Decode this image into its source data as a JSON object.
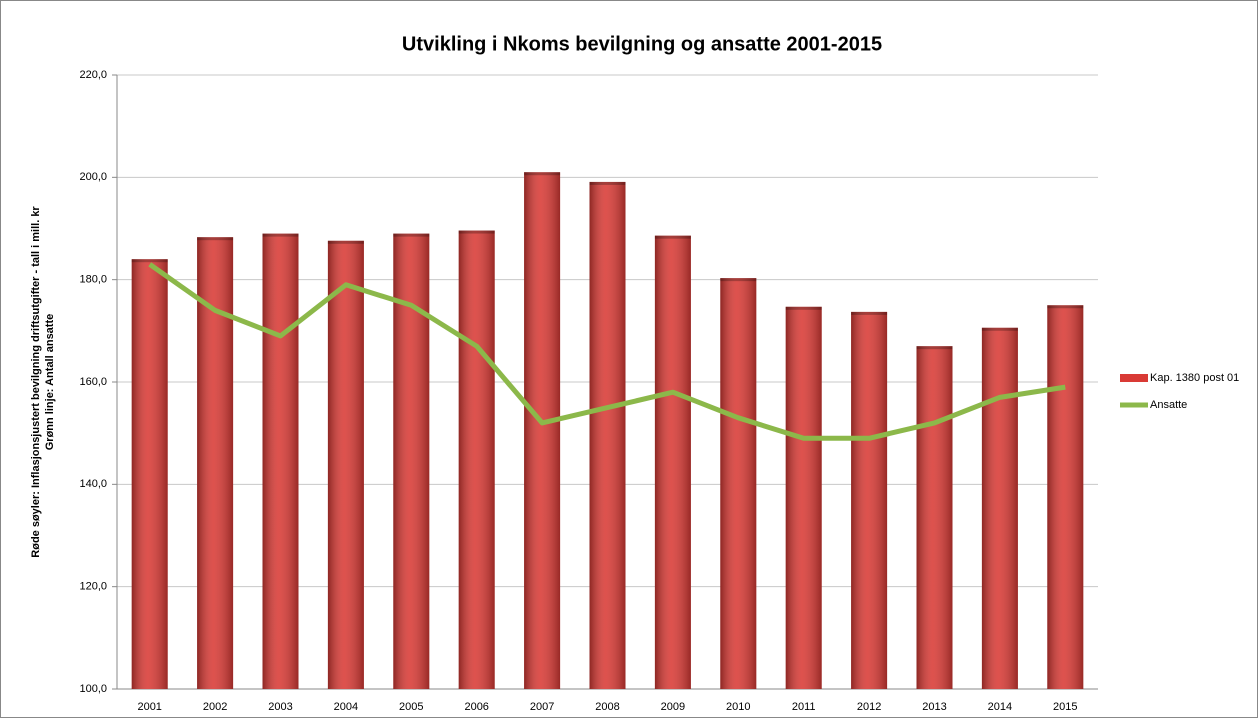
{
  "chart_data": {
    "type": "bar",
    "title": "Utvikling i Nkoms bevilgning og ansatte 2001-2015",
    "y_label": [
      "Røde søyler: Inflasjonsjustert bevilgning driftsutgifter  - tall i mill. kr",
      "Grønn linje: Antall ansatte"
    ],
    "categories": [
      "2001",
      "2002",
      "2003",
      "2004",
      "2005",
      "2006",
      "2007",
      "2008",
      "2009",
      "2010",
      "2011",
      "2012",
      "2013",
      "2014",
      "2015"
    ],
    "series": [
      {
        "name": "Kap. 1380 post 01",
        "type": "bar",
        "color": "#d93a35",
        "values": [
          184,
          188.3,
          189,
          187.6,
          189,
          189.6,
          201,
          199.1,
          188.6,
          180.3,
          174.7,
          173.7,
          167,
          170.6,
          175
        ]
      },
      {
        "name": "Ansatte",
        "type": "line",
        "color": "#8cb84a",
        "values": [
          183,
          174,
          169,
          179,
          175,
          167,
          152,
          155,
          158,
          153,
          149,
          149,
          152,
          157,
          159
        ]
      }
    ],
    "ylim": [
      100,
      220
    ],
    "yticks": [
      {
        "value": 100,
        "label": "100,0"
      },
      {
        "value": 120,
        "label": "120,0"
      },
      {
        "value": 140,
        "label": "140,0"
      },
      {
        "value": 160,
        "label": "160,0"
      },
      {
        "value": 180,
        "label": "180,0"
      },
      {
        "value": 200,
        "label": "200,0"
      },
      {
        "value": 220,
        "label": "220,0"
      }
    ],
    "grid": true,
    "legend": "right"
  }
}
